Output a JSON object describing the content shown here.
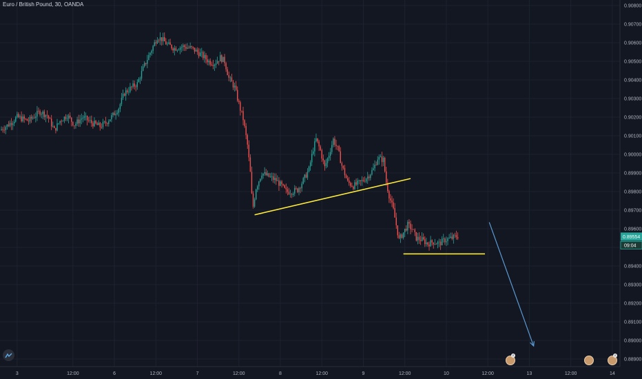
{
  "header": {
    "symbol_title": "Euro / British Pound, 30, OANDA"
  },
  "colors": {
    "background": "#131722",
    "grid": "#1e2230",
    "up": "#26a69a",
    "down": "#ef5350",
    "trendline": "#ffeb3b",
    "arrow": "#5b9bd5",
    "price_badge": "#26a69a",
    "axis_text": "#b2b5be"
  },
  "icons": {
    "logo": "tradingview-logo-icon",
    "avatars": [
      "user-avatar-icon",
      "user-avatar-icon",
      "user-avatar-icon"
    ]
  },
  "chart_data": {
    "type": "candlestick",
    "y_axis": {
      "labels": [
        "0.90800",
        "0.90700",
        "0.90600",
        "0.90500",
        "0.90400",
        "0.90300",
        "0.90200",
        "0.90100",
        "0.90000",
        "0.89900",
        "0.89800",
        "0.89700",
        "0.89600",
        "0.89500",
        "0.89400",
        "0.89300",
        "0.89200",
        "0.89100",
        "0.89000",
        "0.88900"
      ],
      "range": [
        0.8888,
        0.9082
      ]
    },
    "x_axis": {
      "labels": [
        "3",
        "12:00",
        "6",
        "12:00",
        "7",
        "12:00",
        "8",
        "12:00",
        "9",
        "12:00",
        "10",
        "12:00",
        "13",
        "12:00",
        "14"
      ],
      "bar_range": [
        0,
        320
      ]
    },
    "x_label_bars": [
      11,
      50,
      79,
      108,
      137,
      166,
      195,
      224,
      253,
      282,
      311,
      340,
      369,
      398,
      427
    ],
    "current_price": {
      "value": "0.89554",
      "countdown": "09:04",
      "price": 0.89554
    },
    "path_points": [
      [
        0,
        0.9013
      ],
      [
        6,
        0.9016
      ],
      [
        12,
        0.902
      ],
      [
        20,
        0.9018
      ],
      [
        28,
        0.9023
      ],
      [
        33,
        0.9021
      ],
      [
        38,
        0.9013
      ],
      [
        42,
        0.9018
      ],
      [
        47,
        0.9021
      ],
      [
        52,
        0.9016
      ],
      [
        58,
        0.902
      ],
      [
        64,
        0.9017
      ],
      [
        70,
        0.9015
      ],
      [
        74,
        0.9017
      ],
      [
        79,
        0.9021
      ],
      [
        83,
        0.9025
      ],
      [
        87,
        0.9033
      ],
      [
        92,
        0.9036
      ],
      [
        96,
        0.9038
      ],
      [
        100,
        0.9046
      ],
      [
        104,
        0.9053
      ],
      [
        107,
        0.9058
      ],
      [
        110,
        0.9063
      ],
      [
        113,
        0.9062
      ],
      [
        117,
        0.9059
      ],
      [
        122,
        0.9057
      ],
      [
        128,
        0.9058
      ],
      [
        134,
        0.9057
      ],
      [
        140,
        0.9054
      ],
      [
        146,
        0.905
      ],
      [
        150,
        0.9049
      ],
      [
        154,
        0.9052
      ],
      [
        157,
        0.905
      ],
      [
        160,
        0.9041
      ],
      [
        164,
        0.9036
      ],
      [
        167,
        0.9027
      ],
      [
        170,
        0.9019
      ],
      [
        173,
        0.9005
      ],
      [
        175,
        0.899
      ],
      [
        176,
        0.8978
      ],
      [
        177,
        0.8972
      ],
      [
        179,
        0.8982
      ],
      [
        183,
        0.899
      ],
      [
        188,
        0.8988
      ],
      [
        193,
        0.8986
      ],
      [
        197,
        0.8983
      ],
      [
        200,
        0.898
      ],
      [
        204,
        0.898
      ],
      [
        208,
        0.8981
      ],
      [
        212,
        0.8986
      ],
      [
        216,
        0.8992
      ],
      [
        219,
        0.9003
      ],
      [
        221,
        0.9008
      ],
      [
        224,
        0.9002
      ],
      [
        227,
        0.8993
      ],
      [
        230,
        0.9
      ],
      [
        233,
        0.9008
      ],
      [
        236,
        0.9003
      ],
      [
        239,
        0.8994
      ],
      [
        243,
        0.8985
      ],
      [
        247,
        0.8983
      ],
      [
        252,
        0.8985
      ],
      [
        257,
        0.8988
      ],
      [
        261,
        0.8992
      ],
      [
        264,
        0.8998
      ],
      [
        268,
        0.8997
      ],
      [
        270,
        0.8985
      ],
      [
        272,
        0.8978
      ],
      [
        275,
        0.897
      ],
      [
        277,
        0.8962
      ],
      [
        279,
        0.8954
      ],
      [
        282,
        0.8958
      ],
      [
        285,
        0.8962
      ],
      [
        288,
        0.896
      ],
      [
        291,
        0.8955
      ],
      [
        295,
        0.8954
      ],
      [
        299,
        0.8952
      ],
      [
        303,
        0.8953
      ],
      [
        307,
        0.8952
      ],
      [
        311,
        0.8954
      ],
      [
        316,
        0.8955
      ],
      [
        319,
        0.8956
      ]
    ],
    "annotations": [
      {
        "kind": "trendline",
        "from": [
          177,
          0.89675
        ],
        "to": [
          286,
          0.8987
        ]
      },
      {
        "kind": "horizontal_segment",
        "from": [
          281,
          0.89465
        ],
        "to": [
          338,
          0.89465
        ]
      },
      {
        "kind": "arrow",
        "from": [
          341,
          0.89635
        ],
        "to": [
          372,
          0.8897
        ]
      }
    ]
  }
}
